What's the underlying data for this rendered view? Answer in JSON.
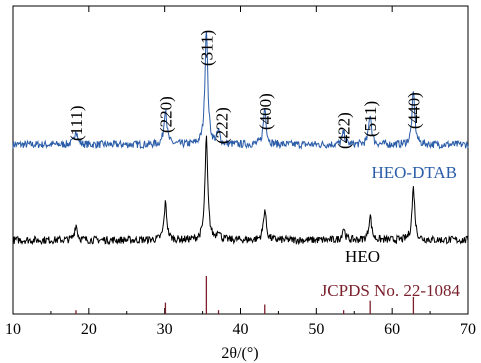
{
  "chart_data": {
    "type": "line",
    "xlabel": "2θ/(°)",
    "ylabel": "",
    "xlim": [
      10,
      70
    ],
    "xticks": [
      10,
      20,
      30,
      40,
      50,
      60,
      70
    ],
    "grid": false,
    "series": [
      {
        "name": "HEO-DTAB",
        "color": "#2a5ca8",
        "baseline_level": 0.55,
        "peaks": [
          {
            "x": 18.3,
            "height": 0.05
          },
          {
            "x": 30.1,
            "height": 0.12
          },
          {
            "x": 35.5,
            "height": 0.38
          },
          {
            "x": 37.1,
            "height": 0.04
          },
          {
            "x": 43.2,
            "height": 0.12
          },
          {
            "x": 53.6,
            "height": 0.04
          },
          {
            "x": 57.1,
            "height": 0.1
          },
          {
            "x": 62.8,
            "height": 0.17
          }
        ]
      },
      {
        "name": "HEO",
        "color": "#000000",
        "baseline_level": 0.24,
        "peaks": [
          {
            "x": 18.3,
            "height": 0.05
          },
          {
            "x": 30.1,
            "height": 0.12
          },
          {
            "x": 35.5,
            "height": 0.33
          },
          {
            "x": 37.1,
            "height": 0.03
          },
          {
            "x": 43.2,
            "height": 0.1
          },
          {
            "x": 53.6,
            "height": 0.04
          },
          {
            "x": 57.1,
            "height": 0.08
          },
          {
            "x": 62.8,
            "height": 0.17
          }
        ]
      },
      {
        "name": "JCPDS No. 22-1084",
        "type": "reference-sticks",
        "color": "#7a1f2b",
        "sticks": [
          {
            "x": 18.3,
            "intensity": 0.1
          },
          {
            "x": 30.1,
            "intensity": 0.3
          },
          {
            "x": 35.5,
            "intensity": 1.0
          },
          {
            "x": 37.1,
            "intensity": 0.1
          },
          {
            "x": 43.2,
            "intensity": 0.25
          },
          {
            "x": 53.6,
            "intensity": 0.1
          },
          {
            "x": 57.1,
            "intensity": 0.35
          },
          {
            "x": 62.8,
            "intensity": 0.45
          }
        ]
      }
    ],
    "annotations": [
      {
        "text": "(111)",
        "x": 18.3
      },
      {
        "text": "(220)",
        "x": 30.1
      },
      {
        "text": "(311)",
        "x": 35.5
      },
      {
        "text": "(222)",
        "x": 37.5
      },
      {
        "text": "(400)",
        "x": 43.2
      },
      {
        "text": "(422)",
        "x": 53.6
      },
      {
        "text": "(511)",
        "x": 57.1
      },
      {
        "text": "(440)",
        "x": 62.8
      }
    ]
  }
}
